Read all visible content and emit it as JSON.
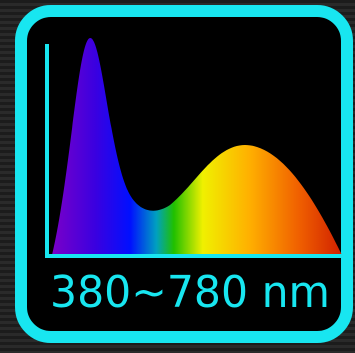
{
  "label": "380~780 nm"
}
